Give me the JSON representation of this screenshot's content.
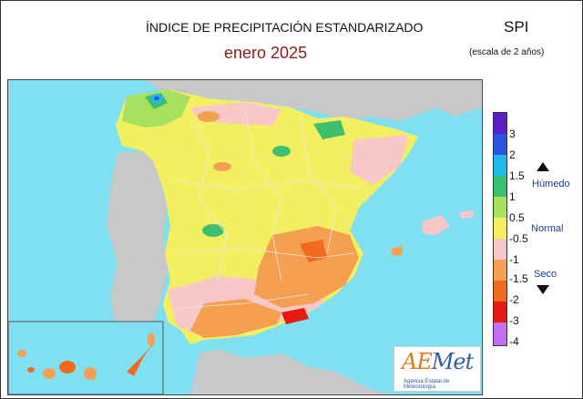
{
  "header": {
    "title": "ÍNDICE DE PRECIPITACIÓN ESTANDARIZADO",
    "period": "enero  2025",
    "index_name": "SPI",
    "scale_note": "(escala de 2 años)"
  },
  "legend": {
    "ticks": [
      "3",
      "2",
      "1.5",
      "1",
      "0.5",
      "-0.5",
      "-1",
      "-1.5",
      "-2",
      "-3",
      "-4"
    ],
    "colors": [
      "#5a1fc8",
      "#2a54e0",
      "#22b8e8",
      "#3cc070",
      "#a8e060",
      "#f2f060",
      "#f8c8c8",
      "#f5a050",
      "#f06a20",
      "#e81a10",
      "#c070f0"
    ],
    "categories": {
      "wet": "Húmedo",
      "normal": "Normal",
      "dry": "Seco"
    }
  },
  "colors": {
    "sea": "#7fe0f2",
    "neighbor_land": "#c8c8c8",
    "provinces": "#e8e8e8",
    "logo_blue": "#2f5ba8",
    "logo_orange": "#e07b1a"
  },
  "logo": {
    "word": "Met",
    "initial": "AE",
    "subtitle": "Agencia Estatal de Meteorología"
  }
}
